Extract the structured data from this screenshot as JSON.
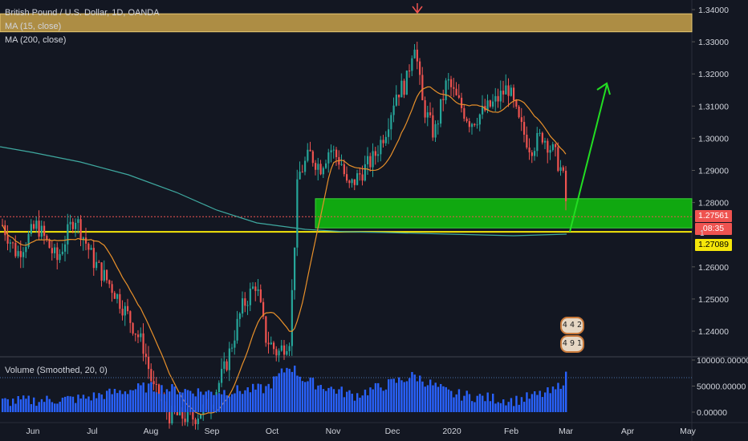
{
  "symbol": {
    "title": "British Pound / U.S. Dollar, 1D, OANDA",
    "ma15": "MA (15, close)",
    "ma200": "MA (200, close)"
  },
  "volume": {
    "label": "Volume (Smoothed, 20, 0)"
  },
  "price_axis": [
    "1.34000",
    "1.33000",
    "1.32000",
    "1.31000",
    "1.30000",
    "1.29000",
    "1.28000",
    "1.26000",
    "1.25000",
    "1.24000"
  ],
  "volume_axis": [
    "100000.00000",
    "50000.00000",
    "0.00000"
  ],
  "time_axis": [
    "Jun",
    "Jul",
    "Aug",
    "Sep",
    "Oct",
    "Nov",
    "Dec",
    "2020",
    "Feb",
    "Mar",
    "Apr",
    "May"
  ],
  "tags": {
    "last_price": "1.27561",
    "countdown": "08:35",
    "yellow_level": "1.27089",
    "peek": "1"
  },
  "badges": {
    "top": "4 4 2",
    "bottom": "4 9 1"
  },
  "colors": {
    "background": "#131722",
    "up": "#26a69a",
    "down": "#ef5350",
    "volume": "#2962ff",
    "ma15": "#e8902a",
    "ma200": "#3fa9a0",
    "resistance_zone": "#c9a24a",
    "support_zone": "#10b010",
    "level_line": "#f5e60a",
    "arrow": "#22dd22"
  },
  "chart_data": {
    "type": "candlestick",
    "ylim": [
      1.227,
      1.342
    ],
    "zones": {
      "resistance": [
        1.3331,
        1.3387
      ],
      "support": [
        1.2721,
        1.2812
      ]
    },
    "level": 1.27089,
    "last_price": 1.27561
  }
}
